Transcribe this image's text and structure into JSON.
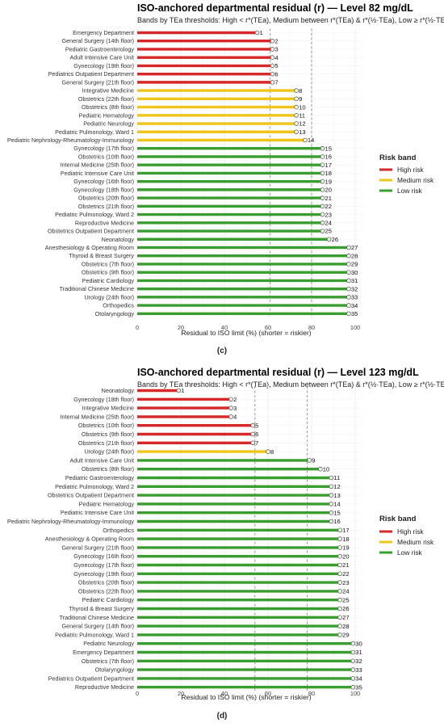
{
  "colors": {
    "high": "#d62828",
    "medium": "#f0c419",
    "low": "#3a9d2f",
    "grid": "#e9e9e9",
    "ref": "#888888"
  },
  "legend": {
    "title": "Risk band",
    "items": [
      {
        "band": "high",
        "label": "High risk"
      },
      {
        "band": "medium",
        "label": "Medium risk"
      },
      {
        "band": "low",
        "label": "Low risk"
      }
    ]
  },
  "chart_data": [
    {
      "type": "bar",
      "panel_label": "(c)",
      "title": "ISO-anchored departmental residual (r) — Level 82 mg/dL",
      "subtitle": "Bands by TEa thresholds: High < r*(TEa), Medium between r*(TEa) & r*(½·TEa), Low ≥ r*(½·TEa)",
      "xlabel": "Residual to ISO limit (%)  (shorter = riskier)",
      "xlim": [
        0,
        100
      ],
      "xticks": [
        0,
        20,
        40,
        60,
        80,
        100
      ],
      "reference_lines": [
        61,
        80
      ],
      "categories": [
        "Emergency Department",
        "General Surgery (14th floor)",
        "Pediatric Gastroenterology",
        "Adult Intensive Care Unit",
        "Gynecology (19th floor)",
        "Pediatrics Outpatient Department",
        "General Surgery (21th floor)",
        "Integrative Medicine",
        "Obstetrics (22th floor)",
        "Obstetrics (8th floor)",
        "Pediatric Hematology",
        "Pediatric Neurology",
        "Pediatric Pulmonology, Ward 1",
        "Pediatric Nephrology-Rheumatology-Immunology",
        "Gynecology (17th floor)",
        "Obstetrics (10th floor)",
        "Internal Medicine (25th floor)",
        "Pediatric Intensive Care Unit",
        "Gynecology (16th floor)",
        "Gynecology (18th floor)",
        "Obstetrics (20th floor)",
        "Obstetrics (21th floor)",
        "Pediatric Pulmonology, Ward 2",
        "Reproductive Medicine",
        "Obstetrics Outpatient Department",
        "Neonatology",
        "Anesthesiology & Operating Room",
        "Thyroid & Breast Surgery",
        "Obstetrics (7th floor)",
        "Obstetrics (9th floor)",
        "Pediatric Cardiology",
        "Traditional Chinese Medicine",
        "Urology (24th floor)",
        "Orthopedics",
        "Otolaryngology"
      ],
      "values": [
        55,
        62,
        62,
        62,
        62,
        62,
        62,
        73,
        73,
        73,
        73,
        73,
        73,
        77,
        85,
        85,
        85,
        85,
        85,
        85,
        85,
        85,
        85,
        85,
        85,
        88,
        97,
        97,
        97,
        97,
        97,
        97,
        97,
        97,
        97
      ],
      "ranks": [
        1,
        2,
        3,
        4,
        5,
        6,
        7,
        8,
        9,
        10,
        11,
        12,
        13,
        14,
        15,
        16,
        17,
        18,
        19,
        20,
        21,
        22,
        23,
        24,
        25,
        26,
        27,
        28,
        29,
        30,
        31,
        32,
        33,
        34,
        35
      ],
      "bands": [
        "high",
        "high",
        "high",
        "high",
        "high",
        "high",
        "high",
        "medium",
        "medium",
        "medium",
        "medium",
        "medium",
        "medium",
        "medium",
        "low",
        "low",
        "low",
        "low",
        "low",
        "low",
        "low",
        "low",
        "low",
        "low",
        "low",
        "low",
        "low",
        "low",
        "low",
        "low",
        "low",
        "low",
        "low",
        "low",
        "low"
      ]
    },
    {
      "type": "bar",
      "panel_label": "(d)",
      "title": "ISO-anchored departmental residual (r) — Level 123 mg/dL",
      "subtitle": "Bands by TEa thresholds: High < r*(TEa), Medium between r*(TEa) & r*(½·TEa), Low ≥ r*(½·TEa)",
      "xlabel": "Residual to ISO limit (%)  (shorter = riskier)",
      "xlim": [
        0,
        100
      ],
      "xticks": [
        0,
        20,
        40,
        60,
        80,
        100
      ],
      "reference_lines": [
        54,
        78
      ],
      "categories": [
        "Neonatology",
        "Gynecology (18th floor)",
        "Integrative Medicine",
        "Internal Medicine (25th floor)",
        "Obstetrics (10th floor)",
        "Obstetrics (9th floor)",
        "Obstetrics (21th floor)",
        "Urology (24th floor)",
        "Adult Intensive Care Unit",
        "Obstetrics (8th floor)",
        "Pediatric Gastroenterology",
        "Pediatric Pulmonology, Ward 2",
        "Obstetrics Outpatient Department",
        "Pediatric Hematology",
        "Pediatric Intensive Care Unit",
        "Pediatric Nephrology-Rheumatology-Immunology",
        "Orthopedics",
        "Anesthesiology & Operating Room",
        "General Surgery (21th floor)",
        "Gynecology (16th floor)",
        "Gynecology (17th floor)",
        "Gynecology (19th floor)",
        "Obstetrics (20th floor)",
        "Obstetrics (22th floor)",
        "Pediatric Cardiology",
        "Thyroid & Breast Surgery",
        "Traditional Chinese Medicine",
        "General Surgery (14th floor)",
        "Pediatric Pulmonology, Ward 1",
        "Pediatric Neurology",
        "Emergency Department",
        "Obstetrics (7th floor)",
        "Otolaryngology",
        "Pediatrics Outpatient Department",
        "Reproductive Medicine"
      ],
      "values": [
        19,
        43,
        43,
        43,
        53,
        53,
        53,
        60,
        79,
        84,
        89,
        89,
        89,
        89,
        89,
        89,
        93,
        93,
        93,
        93,
        93,
        93,
        93,
        93,
        93,
        93,
        93,
        93,
        93,
        99,
        99,
        99,
        99,
        99,
        99
      ],
      "ranks": [
        1,
        2,
        3,
        4,
        5,
        6,
        7,
        8,
        9,
        10,
        11,
        12,
        13,
        14,
        15,
        16,
        17,
        18,
        19,
        20,
        21,
        22,
        23,
        24,
        25,
        26,
        27,
        28,
        29,
        30,
        31,
        32,
        33,
        34,
        35
      ],
      "bands": [
        "high",
        "high",
        "high",
        "high",
        "high",
        "high",
        "high",
        "medium",
        "low",
        "low",
        "low",
        "low",
        "low",
        "low",
        "low",
        "low",
        "low",
        "low",
        "low",
        "low",
        "low",
        "low",
        "low",
        "low",
        "low",
        "low",
        "low",
        "low",
        "low",
        "low",
        "low",
        "low",
        "low",
        "low",
        "low"
      ]
    }
  ]
}
